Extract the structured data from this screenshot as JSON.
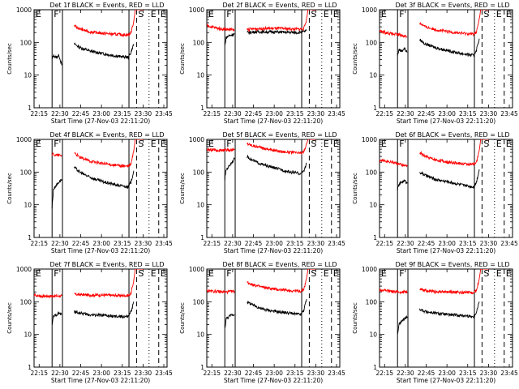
{
  "figure": {
    "x_ticks": [
      "22:15",
      "22:30",
      "22:45",
      "23:00",
      "23:15",
      "23:30",
      "23:45"
    ],
    "y_ticks": [
      "1",
      "10",
      "100",
      "1000"
    ],
    "ylabel": "Counts/sec",
    "xlabel": "Start Time (27-Nov-03 22:11:20)",
    "colors": {
      "events": "#000000",
      "lld": "#ff0000",
      "axes": "#000000"
    },
    "markers": [
      "E",
      "F",
      "S",
      "E",
      "E"
    ]
  },
  "chart_data": [
    {
      "type": "line",
      "title": "Det 1f BLACK = Events, RED = LLD",
      "xlabel": "Start Time (27-Nov-03 22:11:20)",
      "ylabel": "Counts/sec",
      "x_unit": "minutes after 22:11:20",
      "xlim": [
        0,
        96
      ],
      "ylim": [
        1,
        1000
      ],
      "log_y": true,
      "gap": [
        20.5,
        28.5
      ],
      "series": [
        {
          "name": "Events",
          "color": "#000000",
          "x": [
            13,
            14,
            16,
            18,
            20,
            29,
            33,
            40,
            50,
            60,
            68,
            70,
            72
          ],
          "y": [
            30,
            40,
            35,
            40,
            20,
            90,
            70,
            55,
            45,
            38,
            35,
            50,
            90
          ]
        },
        {
          "name": "LLD",
          "color": "#ff0000",
          "x": [
            29,
            33,
            40,
            50,
            60,
            68,
            70,
            72,
            73,
            75,
            77,
            79
          ],
          "y": [
            320,
            260,
            210,
            190,
            175,
            170,
            200,
            450,
            1000,
            1000,
            1000,
            1000
          ]
        }
      ],
      "vlines": [
        {
          "x": 13,
          "style": "solid"
        },
        {
          "x": 20.5,
          "style": "solid"
        },
        {
          "x": 68.5,
          "style": "solid"
        },
        {
          "x": 74,
          "style": "dashed"
        },
        {
          "x": 83,
          "style": "dotted"
        },
        {
          "x": 90,
          "style": "dashed"
        }
      ]
    },
    {
      "type": "line",
      "title": "Det 2f BLACK = Events, RED = LLD",
      "xlabel": "Start Time (27-Nov-03 22:11:20)",
      "ylabel": "Counts/sec",
      "x_unit": "minutes after 22:11:20",
      "xlim": [
        0,
        96
      ],
      "ylim": [
        1,
        1000
      ],
      "log_y": true,
      "gap": [
        20.5,
        28.5
      ],
      "series": [
        {
          "name": "Events",
          "color": "#000000",
          "x": [
            13,
            14,
            16,
            18,
            20,
            29,
            35,
            45,
            55,
            65,
            70,
            72
          ],
          "y": [
            80,
            140,
            160,
            170,
            180,
            200,
            210,
            210,
            205,
            200,
            210,
            230
          ]
        },
        {
          "name": "LLD",
          "color": "#ff0000",
          "x": [
            0,
            5,
            10,
            15,
            20,
            29,
            35,
            45,
            55,
            65,
            70,
            72,
            73,
            75,
            77,
            79
          ],
          "y": [
            330,
            290,
            260,
            250,
            240,
            250,
            260,
            270,
            265,
            255,
            260,
            500,
            1000,
            1000,
            1000,
            1000
          ]
        }
      ],
      "vlines": [
        {
          "x": 13,
          "style": "solid"
        },
        {
          "x": 20.5,
          "style": "solid"
        },
        {
          "x": 68.5,
          "style": "solid"
        },
        {
          "x": 74,
          "style": "dashed"
        },
        {
          "x": 83,
          "style": "dotted"
        },
        {
          "x": 90,
          "style": "dashed"
        }
      ]
    },
    {
      "type": "line",
      "title": "Det 3f BLACK = Events, RED = LLD",
      "xlabel": "Start Time (27-Nov-03 22:11:20)",
      "ylabel": "Counts/sec",
      "x_unit": "minutes after 22:11:20",
      "xlim": [
        0,
        96
      ],
      "ylim": [
        1,
        1000
      ],
      "log_y": true,
      "gap": [
        20.5,
        28.5
      ],
      "series": [
        {
          "name": "Events",
          "color": "#000000",
          "x": [
            13,
            14,
            16,
            18,
            20,
            29,
            33,
            40,
            50,
            60,
            68,
            70,
            72
          ],
          "y": [
            40,
            60,
            55,
            65,
            50,
            120,
            90,
            70,
            55,
            45,
            40,
            60,
            130
          ]
        },
        {
          "name": "LLD",
          "color": "#ff0000",
          "x": [
            0,
            5,
            10,
            15,
            20,
            29,
            33,
            40,
            50,
            60,
            68,
            70,
            72,
            73,
            75,
            77,
            79
          ],
          "y": [
            220,
            200,
            180,
            170,
            150,
            400,
            300,
            250,
            210,
            190,
            180,
            210,
            500,
            1000,
            1000,
            1000,
            1000
          ]
        }
      ],
      "vlines": [
        {
          "x": 13,
          "style": "solid"
        },
        {
          "x": 20.5,
          "style": "solid"
        },
        {
          "x": 68.5,
          "style": "solid"
        },
        {
          "x": 74,
          "style": "dashed"
        },
        {
          "x": 83,
          "style": "dotted"
        },
        {
          "x": 90,
          "style": "dashed"
        }
      ]
    },
    {
      "type": "line",
      "title": "Det 4f BLACK = Events, RED = LLD",
      "xlabel": "Start Time (27-Nov-03 22:11:20)",
      "ylabel": "Counts/sec",
      "x_unit": "minutes after 22:11:20",
      "xlim": [
        0,
        96
      ],
      "ylim": [
        1,
        1000
      ],
      "log_y": true,
      "gap": [
        20.5,
        28.5
      ],
      "series": [
        {
          "name": "Events",
          "color": "#000000",
          "x": [
            13,
            14,
            16,
            18,
            20,
            29,
            33,
            40,
            50,
            60,
            68,
            70,
            72
          ],
          "y": [
            8,
            30,
            40,
            50,
            60,
            140,
            100,
            70,
            50,
            40,
            35,
            50,
            110
          ]
        },
        {
          "name": "LLD",
          "color": "#ff0000",
          "x": [
            13,
            16,
            20,
            29,
            33,
            40,
            50,
            60,
            68,
            70,
            72,
            73,
            75,
            77,
            79
          ],
          "y": [
            350,
            330,
            320,
            400,
            280,
            220,
            180,
            160,
            150,
            180,
            450,
            1000,
            1000,
            1000,
            1000
          ]
        }
      ],
      "vlines": [
        {
          "x": 13,
          "style": "solid"
        },
        {
          "x": 20.5,
          "style": "solid"
        },
        {
          "x": 68.5,
          "style": "solid"
        },
        {
          "x": 74,
          "style": "dashed"
        },
        {
          "x": 83,
          "style": "dotted"
        },
        {
          "x": 90,
          "style": "dashed"
        }
      ]
    },
    {
      "type": "line",
      "title": "Det 5f BLACK = Events, RED = LLD",
      "xlabel": "Start Time (27-Nov-03 22:11:20)",
      "ylabel": "Counts/sec",
      "x_unit": "minutes after 22:11:20",
      "xlim": [
        0,
        96
      ],
      "ylim": [
        1,
        1000
      ],
      "log_y": true,
      "gap": [
        20.5,
        28.5
      ],
      "series": [
        {
          "name": "Events",
          "color": "#000000",
          "x": [
            13,
            14,
            16,
            18,
            20,
            29,
            33,
            40,
            50,
            60,
            68,
            70,
            72
          ],
          "y": [
            60,
            120,
            150,
            200,
            250,
            300,
            230,
            170,
            130,
            100,
            90,
            110,
            180
          ]
        },
        {
          "name": "LLD",
          "color": "#ff0000",
          "x": [
            0,
            5,
            10,
            15,
            20,
            29,
            33,
            40,
            50,
            60,
            68,
            70,
            72,
            73,
            75,
            77,
            79
          ],
          "y": [
            480,
            470,
            460,
            470,
            480,
            750,
            650,
            550,
            450,
            400,
            380,
            420,
            700,
            1000,
            1000,
            1000,
            1000
          ]
        }
      ],
      "vlines": [
        {
          "x": 13,
          "style": "solid"
        },
        {
          "x": 20.5,
          "style": "solid"
        },
        {
          "x": 68.5,
          "style": "solid"
        },
        {
          "x": 74,
          "style": "dashed"
        },
        {
          "x": 83,
          "style": "dotted"
        },
        {
          "x": 90,
          "style": "dashed"
        }
      ]
    },
    {
      "type": "line",
      "title": "Det 6f BLACK = Events, RED = LLD",
      "xlabel": "Start Time (27-Nov-03 22:11:20)",
      "ylabel": "Counts/sec",
      "x_unit": "minutes after 22:11:20",
      "xlim": [
        0,
        96
      ],
      "ylim": [
        1,
        1000
      ],
      "log_y": true,
      "gap": [
        20.5,
        28.5
      ],
      "series": [
        {
          "name": "Events",
          "color": "#000000",
          "x": [
            13,
            14,
            16,
            18,
            20,
            29,
            33,
            40,
            50,
            60,
            68,
            70,
            72
          ],
          "y": [
            30,
            40,
            50,
            55,
            45,
            100,
            80,
            60,
            50,
            40,
            35,
            50,
            120
          ]
        },
        {
          "name": "LLD",
          "color": "#ff0000",
          "x": [
            0,
            5,
            10,
            15,
            20,
            29,
            33,
            40,
            50,
            60,
            68,
            70,
            72,
            73,
            75,
            77,
            79
          ],
          "y": [
            230,
            220,
            200,
            170,
            150,
            400,
            300,
            240,
            200,
            180,
            170,
            200,
            450,
            1000,
            1000,
            1000,
            1000
          ]
        }
      ],
      "vlines": [
        {
          "x": 13,
          "style": "solid"
        },
        {
          "x": 20.5,
          "style": "solid"
        },
        {
          "x": 68.5,
          "style": "solid"
        },
        {
          "x": 74,
          "style": "dashed"
        },
        {
          "x": 83,
          "style": "dotted"
        },
        {
          "x": 90,
          "style": "dashed"
        }
      ]
    },
    {
      "type": "line",
      "title": "Det 7f BLACK = Events, RED = LLD",
      "xlabel": "Start Time (27-Nov-03 22:11:20)",
      "ylabel": "Counts/sec",
      "x_unit": "minutes after 22:11:20",
      "xlim": [
        0,
        96
      ],
      "ylim": [
        1,
        1000
      ],
      "log_y": true,
      "gap": [
        20.5,
        28.5
      ],
      "series": [
        {
          "name": "Events",
          "color": "#000000",
          "x": [
            13,
            14,
            16,
            18,
            20,
            29,
            33,
            40,
            50,
            60,
            68,
            70,
            72
          ],
          "y": [
            20,
            35,
            40,
            45,
            40,
            50,
            45,
            40,
            38,
            35,
            35,
            50,
            100
          ]
        },
        {
          "name": "LLD",
          "color": "#ff0000",
          "x": [
            0,
            5,
            10,
            15,
            20,
            29,
            33,
            40,
            50,
            60,
            68,
            70,
            72,
            73,
            75,
            77,
            79
          ],
          "y": [
            160,
            150,
            150,
            150,
            150,
            170,
            165,
            160,
            160,
            155,
            155,
            180,
            450,
            1000,
            1000,
            1000,
            1000
          ]
        }
      ],
      "vlines": [
        {
          "x": 13,
          "style": "solid"
        },
        {
          "x": 20.5,
          "style": "solid"
        },
        {
          "x": 68.5,
          "style": "solid"
        },
        {
          "x": 74,
          "style": "dashed"
        },
        {
          "x": 83,
          "style": "dotted"
        },
        {
          "x": 90,
          "style": "dashed"
        }
      ]
    },
    {
      "type": "line",
      "title": "Det 8f BLACK = Events, RED = LLD",
      "xlabel": "Start Time (27-Nov-03 22:11:20)",
      "ylabel": "Counts/sec",
      "x_unit": "minutes after 22:11:20",
      "xlim": [
        0,
        96
      ],
      "ylim": [
        1,
        1000
      ],
      "log_y": true,
      "gap": [
        20.5,
        28.5
      ],
      "series": [
        {
          "name": "Events",
          "color": "#000000",
          "x": [
            13,
            14,
            16,
            18,
            20,
            29,
            33,
            40,
            50,
            60,
            68,
            70,
            72
          ],
          "y": [
            15,
            30,
            35,
            40,
            40,
            100,
            80,
            60,
            50,
            45,
            40,
            55,
            120
          ]
        },
        {
          "name": "LLD",
          "color": "#ff0000",
          "x": [
            0,
            5,
            10,
            15,
            20,
            29,
            33,
            40,
            50,
            60,
            68,
            70,
            72,
            73,
            75,
            77,
            79
          ],
          "y": [
            220,
            210,
            200,
            200,
            210,
            400,
            330,
            280,
            240,
            220,
            210,
            240,
            500,
            1000,
            1000,
            1000,
            1000
          ]
        }
      ],
      "vlines": [
        {
          "x": 13,
          "style": "solid"
        },
        {
          "x": 20.5,
          "style": "solid"
        },
        {
          "x": 68.5,
          "style": "solid"
        },
        {
          "x": 74,
          "style": "dashed"
        },
        {
          "x": 83,
          "style": "dotted"
        },
        {
          "x": 90,
          "style": "dashed"
        }
      ]
    },
    {
      "type": "line",
      "title": "Det 9f BLACK = Events, RED = LLD",
      "xlabel": "Start Time (27-Nov-03 22:11:20)",
      "ylabel": "Counts/sec",
      "x_unit": "minutes after 22:11:20",
      "xlim": [
        0,
        96
      ],
      "ylim": [
        1,
        1000
      ],
      "log_y": true,
      "gap": [
        20.5,
        28.5
      ],
      "series": [
        {
          "name": "Events",
          "color": "#000000",
          "x": [
            13,
            14,
            16,
            18,
            20,
            29,
            33,
            40,
            50,
            60,
            68,
            70,
            72
          ],
          "y": [
            10,
            20,
            25,
            30,
            35,
            60,
            50,
            45,
            40,
            38,
            35,
            50,
            100
          ]
        },
        {
          "name": "LLD",
          "color": "#ff0000",
          "x": [
            0,
            5,
            10,
            15,
            20,
            29,
            33,
            40,
            50,
            60,
            68,
            70,
            72,
            73,
            75,
            77,
            79
          ],
          "y": [
            230,
            220,
            200,
            200,
            200,
            250,
            220,
            200,
            200,
            190,
            190,
            220,
            500,
            1000,
            1000,
            1000,
            1000
          ]
        }
      ],
      "vlines": [
        {
          "x": 13,
          "style": "solid"
        },
        {
          "x": 20.5,
          "style": "solid"
        },
        {
          "x": 68.5,
          "style": "solid"
        },
        {
          "x": 74,
          "style": "dashed"
        },
        {
          "x": 83,
          "style": "dotted"
        },
        {
          "x": 90,
          "style": "dashed"
        }
      ]
    }
  ]
}
